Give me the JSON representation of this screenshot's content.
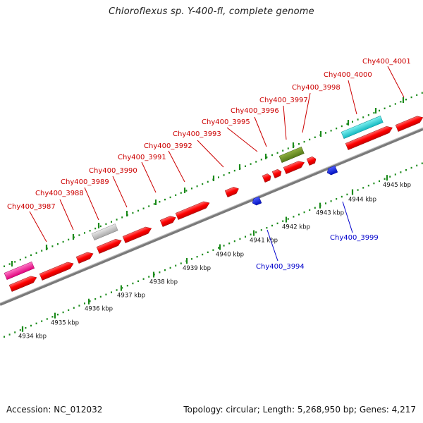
{
  "title": "Chloroflexus sp. Y-400-fl, complete genome",
  "footer": {
    "accession": "Accession: NC_012032",
    "summary": "Topology: circular; Length: 5,268,950 bp; Genes: 4,217"
  },
  "colors": {
    "gene_forward": "#ff0000",
    "gene_reverse": "#0000ee",
    "label_forward": "#cc0000",
    "label_reverse": "#0000cc",
    "rrna": "#ff1493",
    "trna": "#c0c0c0",
    "misc_feature": "#6b8e23",
    "cyan_feature": "#22d3d3",
    "tick": "#1a8a1a",
    "backbone": "#888888"
  },
  "axis": {
    "unit": "kbp",
    "tick_labels": [
      "4934 kbp",
      "4935 kbp",
      "4936 kbp",
      "4937 kbp",
      "4938 kbp",
      "4939 kbp",
      "4940 kbp",
      "4941 kbp",
      "4942 kbp",
      "4943 kbp",
      "4944 kbp",
      "4945 kbp"
    ]
  },
  "labels_forward": [
    "Chy400_3987",
    "Chy400_3988",
    "Chy400_3989",
    "Chy400_3990",
    "Chy400_3991",
    "Chy400_3992",
    "Chy400_3993",
    "Chy400_3995",
    "Chy400_3996",
    "Chy400_3997",
    "Chy400_3998",
    "Chy400_4000",
    "Chy400_4001"
  ],
  "labels_reverse": [
    "Chy400_3994",
    "Chy400_3999"
  ]
}
